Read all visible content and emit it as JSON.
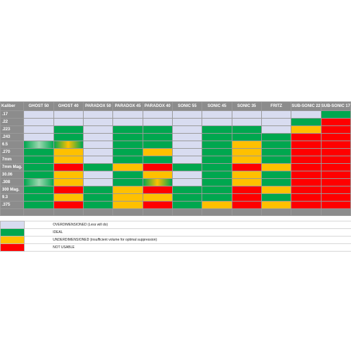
{
  "header": {
    "first": "Kaliber",
    "models": [
      "GHOST 50",
      "GHOST 40",
      "PARADOX 50",
      "PARADOX 45",
      "PARADOX 40",
      "SONIC 55",
      "SONIC 45",
      "SONIC 35",
      "FRITZ",
      "SUB-SONIC 22",
      "SUB-SONIC 17"
    ]
  },
  "rows": [
    {
      "caliber": ".17",
      "cells": [
        "O",
        "O",
        "O",
        "O",
        "O",
        "O",
        "O",
        "O",
        "O",
        "O",
        "I"
      ]
    },
    {
      "caliber": ".22",
      "cells": [
        "O",
        "O",
        "O",
        "O",
        "O",
        "O",
        "O",
        "O",
        "O",
        "I",
        "N"
      ]
    },
    {
      "caliber": ".223",
      "cells": [
        "O",
        "I",
        "O",
        "I",
        "I",
        "O",
        "I",
        "I",
        "O",
        "U",
        "N"
      ]
    },
    {
      "caliber": ".243",
      "cells": [
        "O",
        "I",
        "O",
        "I",
        "I",
        "O",
        "I",
        "I",
        "I",
        "N",
        "N"
      ]
    },
    {
      "caliber": "6.5",
      "cells": [
        "G1",
        "G2",
        "O",
        "I",
        "I",
        "O",
        "I",
        "U",
        "I",
        "N",
        "N"
      ]
    },
    {
      "caliber": ".270",
      "cells": [
        "I",
        "U",
        "O",
        "I",
        "U",
        "O",
        "I",
        "U",
        "I",
        "N",
        "N"
      ]
    },
    {
      "caliber": "7mm",
      "cells": [
        "I",
        "U",
        "O",
        "I",
        "I",
        "O",
        "I",
        "U",
        "I",
        "N",
        "N"
      ]
    },
    {
      "caliber": "7mm Mag.",
      "cells": [
        "I",
        "N",
        "I",
        "U",
        "N",
        "I",
        "I",
        "N",
        "U",
        "N",
        "N"
      ]
    },
    {
      "caliber": "30.06",
      "cells": [
        "I",
        "U",
        "O",
        "I",
        "U",
        "O",
        "I",
        "U",
        "I",
        "N",
        "N"
      ]
    },
    {
      "caliber": ".308",
      "cells": [
        "G1",
        "U",
        "O",
        "I",
        "G2",
        "O",
        "I",
        "U",
        "I",
        "N",
        "N"
      ]
    },
    {
      "caliber": "300 Mag.",
      "cells": [
        "I",
        "N",
        "I",
        "U",
        "N",
        "I",
        "I",
        "N",
        "U",
        "N",
        "N"
      ]
    },
    {
      "caliber": "9.3",
      "cells": [
        "I",
        "U",
        "I",
        "U",
        "U",
        "I",
        "I",
        "N",
        "I",
        "N",
        "N"
      ]
    },
    {
      "caliber": ".375",
      "cells": [
        "I",
        "N",
        "I",
        "U",
        "N",
        "I",
        "U",
        "N",
        "U",
        "N",
        "N"
      ]
    }
  ],
  "legend": [
    {
      "code": "O",
      "label": "OVERDIMENSIONED (Less will do)"
    },
    {
      "code": "I",
      "label": "IDEAL"
    },
    {
      "code": "U",
      "label": "UNDERDIMENSIONED (insufficient volume for optimal suppression)"
    },
    {
      "code": "N",
      "label": "NOT USABLE"
    }
  ],
  "colors": {
    "overdimensioned": "#d8dcf0",
    "ideal": "#00a74f",
    "underdimensioned": "#ffc000",
    "not_usable": "#ff0000",
    "header": "#8c8c8c"
  }
}
